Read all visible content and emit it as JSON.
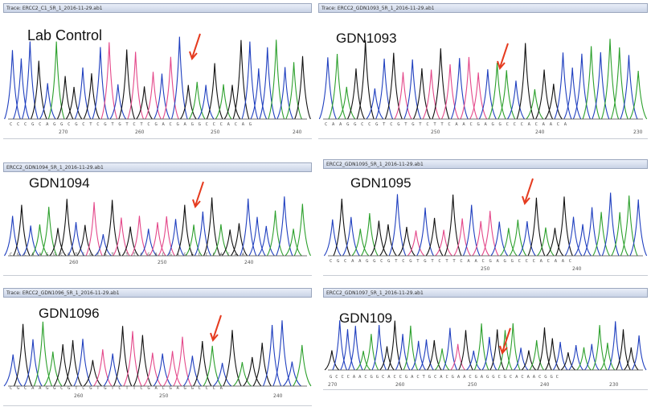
{
  "colors": {
    "A": "#2ca02c",
    "C": "#1f3fbf",
    "G": "#111111",
    "T": "#e4488a",
    "arrow": "#e53b1f"
  },
  "panels": [
    {
      "title": "Trace: ERCC2_C1_5R_1_2016-11-29.ab1",
      "label": "Lab Control",
      "sequence": "C C C G C A G G C G C T C G T G T C T C G A C G A G G C C C A C A G",
      "positions": [
        "270",
        "260",
        "250",
        "240"
      ],
      "mutation_marker": "arrow"
    },
    {
      "title": "Trace: ERCC2_GDN1093_5R_1_2016-11-29.ab1",
      "label": "GDN1093",
      "sequence": "C A A G G C C G T C G T G T C T T C A A C G A G G C C C A C A A C A",
      "positions": [
        "250",
        "240",
        "230"
      ],
      "mutation_marker": "arrow"
    },
    {
      "title": "ERCC2_GDN1094_5R_1_2016-11-29.ab1",
      "label": "GDN1094",
      "sequence": "C G C A A G G C G T C G T G T C T T C G A C G A G G C C C A C A A",
      "positions": [
        "260",
        "250",
        "240"
      ],
      "mutation_marker": "arrow"
    },
    {
      "title": "ERCC2_GDN1095_5R_1_2016-11-29.ab1",
      "label": "GDN1095",
      "sequence": "C G C A A G G C G T C G T G T C T T C A A C G A G G C C C A C A A C",
      "positions": [
        "250",
        "240"
      ],
      "mutation_marker": "arrow"
    },
    {
      "title": "Trace: ERCC2_GDN1096_5R_1_2016-11-29.ab1",
      "label": "GDN1096",
      "sequence": "C G C A A G G C G T C G T G T C T T C G A C G A G G C C C A",
      "positions": [
        "260",
        "250",
        "240"
      ],
      "mutation_marker": "arrow"
    },
    {
      "title": "ERCC2_GDN1097_5R_1_2016-11-29.ab1",
      "label": "GDN109",
      "sequence": "G C C C A A C G G C A C C G A C T G C A C G A A C G A G G C G C A C A A C G G C",
      "positions": [
        "270",
        "260",
        "250",
        "240",
        "230"
      ],
      "mutation_marker": "arrow"
    }
  ]
}
